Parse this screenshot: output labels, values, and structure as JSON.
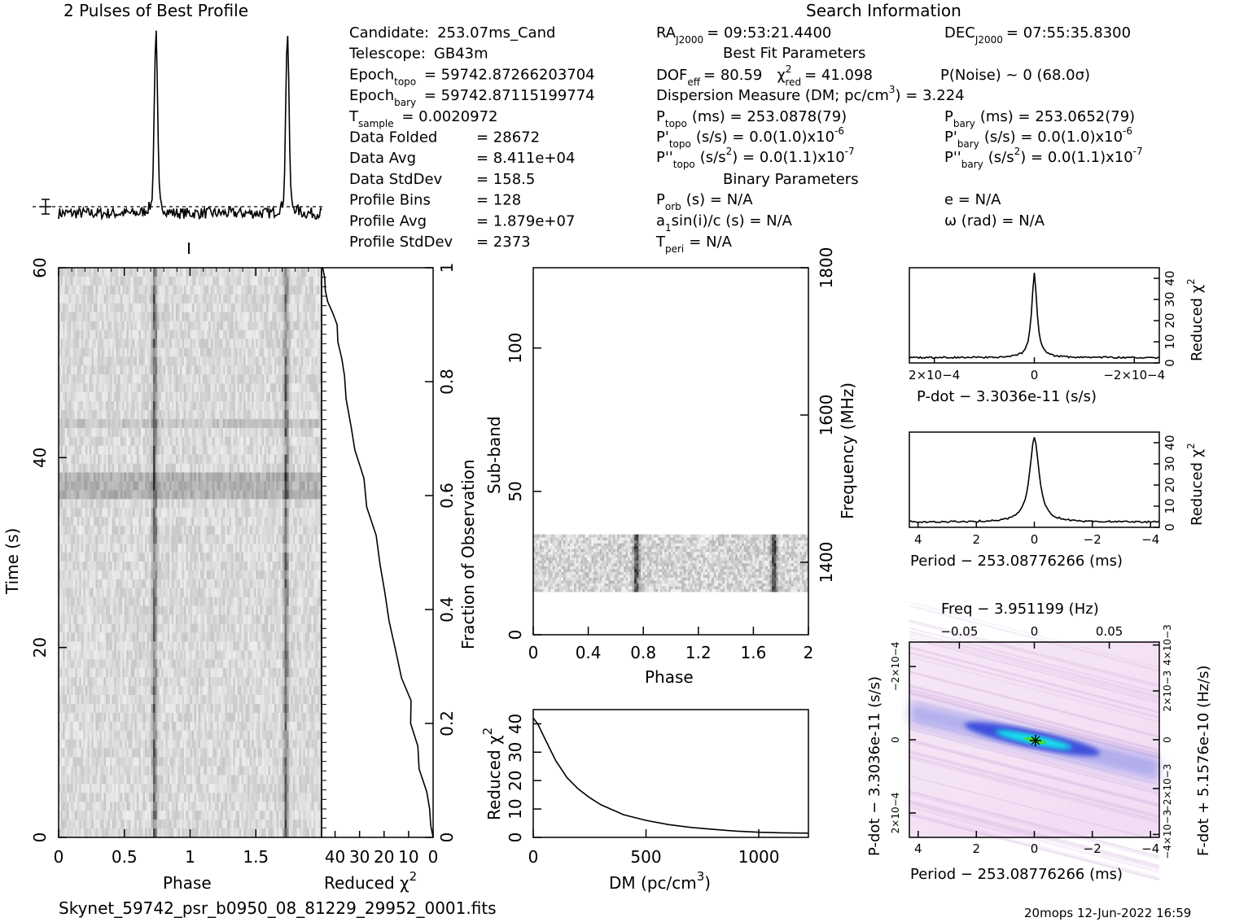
{
  "profile": {
    "title": "2 Pulses of Best Profile"
  },
  "header": {
    "search_title": "Search Information",
    "best_fit_title": "Best Fit Parameters",
    "binary_title": "Binary Parameters",
    "col1": [
      {
        "label": "Candidate:",
        "value": "253.07ms_Cand"
      },
      {
        "label": "Telescope:",
        "value": "GB43m"
      },
      {
        "label": "Epoch",
        "sub": "topo",
        "value": "= 59742.87266203704"
      },
      {
        "label": "Epoch",
        "sub": "bary",
        "value": "= 59742.87115199774"
      },
      {
        "label": "T",
        "sub": "sample",
        "value": "=   0.0020972"
      },
      {
        "label": "Data Folded",
        "value": "=   28672"
      },
      {
        "label": "Data Avg",
        "value": "=   8.411e+04"
      },
      {
        "label": "Data StdDev",
        "value": "=   158.5"
      },
      {
        "label": "Profile Bins",
        "value": "=   128"
      },
      {
        "label": "Profile Avg",
        "value": "=   1.879e+07"
      },
      {
        "label": "Profile StdDev",
        "value": "=   2373"
      }
    ],
    "ra": "RA",
    "ra_sub": "J2000",
    "ra_value": "= 09:53:21.4400",
    "dec": "DEC",
    "dec_sub": "J2000",
    "dec_value": "= 07:55:35.8300",
    "dof_label": "DOF",
    "dof_sub": "eff",
    "dof_value": "= 80.59",
    "chi_label": "χ",
    "chi_sup": "2",
    "chi_sub": "red",
    "chi_value": "= 41.098",
    "pnoise": "P(Noise) ~ 0    (68.0σ)",
    "dm_line": "Dispersion Measure (DM; pc/cm",
    "dm_sup": "3",
    "dm_value": ") = 3.224",
    "p_topo_label": "P",
    "p_topo_sub": "topo",
    "p_topo_value": "(ms) =  253.0878(79)",
    "p_bary_label": "P",
    "p_bary_sub": "bary",
    "p_bary_value": "(ms) =  253.0652(79)",
    "pd_topo_label": "P'",
    "pd_topo_sub": "topo",
    "pd_topo_value": "(s/s) = 0.0(1.0)x10",
    "pd_topo_exp": "-6",
    "pd_bary_label": "P'",
    "pd_bary_sub": "bary",
    "pd_bary_value": "(s/s) = 0.0(1.0)x10",
    "pd_bary_exp": "-6",
    "pdd_topo_label": "P''",
    "pdd_topo_sub": "topo",
    "pdd_topo_value_a": "(s/s",
    "pdd_topo_value_sup": "2",
    "pdd_topo_value_b": ") = 0.0(1.1)x10",
    "pdd_topo_exp": "-7",
    "pdd_bary_label": "P''",
    "pdd_bary_sub": "bary",
    "pdd_bary_value_a": "(s/s",
    "pdd_bary_value_sup": "2",
    "pdd_bary_value_b": ") = 0.0(1.1)x10",
    "pdd_bary_exp": "-7",
    "porb_label": "P",
    "porb_sub": "orb",
    "porb_value": "(s) = N/A",
    "a1_label": "a",
    "a1_sub": "1",
    "a1_value": "sin(i)/c (s) = N/A",
    "tperi_label": "T",
    "tperi_sub": "peri",
    "tperi_value": "= N/A",
    "e_value": "e = N/A",
    "omega_value": "ω (rad) = N/A"
  },
  "footer": {
    "filename": "Skynet_59742_psr_b0950_08_81229_29952_0001.fits",
    "stamp": "20mops 12-Jun-2022 16:59"
  },
  "chart_data": [
    {
      "id": "profile",
      "type": "line",
      "title": "2 Pulses of Best Profile",
      "x": "phase 0-2 (two repeats)",
      "peaks_phase": [
        0.74,
        1.74
      ],
      "xlim": [
        0,
        2
      ]
    },
    {
      "id": "time-phase",
      "type": "heatmap",
      "xlabel": "Phase",
      "ylabel": "Time (s)",
      "xlim": [
        0,
        2
      ],
      "ylim": [
        0,
        60
      ],
      "xticks": [
        "0",
        "0.5",
        "1",
        "1.5"
      ],
      "yticks": [
        "0",
        "20",
        "40",
        "60"
      ],
      "pulse_phase": [
        0.73,
        1.73
      ]
    },
    {
      "id": "chi-vs-time",
      "type": "line",
      "xlabel": "Reduced χ2",
      "ylabel": "Fraction of Observation",
      "xticks": [
        "40",
        "30",
        "20",
        "10",
        "0"
      ],
      "yticks": [
        "0",
        "0.2",
        "0.4",
        "0.6",
        "0.8",
        "1"
      ],
      "x": [
        0,
        1,
        2,
        3,
        5,
        7,
        9,
        10,
        12,
        15,
        18,
        20,
        22,
        24,
        27,
        29,
        31,
        33,
        35,
        37,
        38,
        39,
        40,
        41,
        42,
        43,
        44,
        45
      ],
      "y": [
        0,
        0.02,
        0.05,
        0.08,
        0.12,
        0.16,
        0.2,
        0.24,
        0.28,
        0.33,
        0.38,
        0.43,
        0.48,
        0.53,
        0.58,
        0.63,
        0.68,
        0.72,
        0.77,
        0.81,
        0.84,
        0.87,
        0.9,
        0.92,
        0.94,
        0.96,
        0.98,
        1.0
      ]
    },
    {
      "id": "subband-phase",
      "type": "heatmap",
      "xlabel": "Phase",
      "ylabel": "Sub-band",
      "y2label": "Frequency (MHz)",
      "xlim": [
        0,
        2
      ],
      "ylim": [
        0,
        128
      ],
      "xticks": [
        "0",
        "0.4",
        "0.8",
        "1.2",
        "1.6",
        "2"
      ],
      "yticks": [
        "0",
        "50",
        "100"
      ],
      "y2ticks": [
        "1400",
        "1600",
        "1800"
      ],
      "data_band": [
        15,
        35
      ],
      "pulse_phase": [
        0.75,
        1.75
      ]
    },
    {
      "id": "dm-chi",
      "type": "line",
      "xlabel": "DM (pc/cm3)",
      "ylabel": "Reduced χ2",
      "xlim": [
        0,
        1220
      ],
      "ylim": [
        0,
        45
      ],
      "xticks": [
        "0",
        "500",
        "1000"
      ],
      "yticks": [
        "0",
        "10",
        "20",
        "30",
        "40"
      ],
      "x": [
        0,
        20,
        50,
        100,
        150,
        200,
        250,
        300,
        400,
        500,
        600,
        700,
        800,
        900,
        1000,
        1100,
        1220
      ],
      "y": [
        42,
        40,
        35,
        27,
        21,
        17,
        14,
        11.5,
        8,
        6,
        4.5,
        3.5,
        2.8,
        2.2,
        1.8,
        1.6,
        1.5
      ]
    },
    {
      "id": "pdot-chi",
      "type": "line",
      "xlabel": "P-dot − 3.3036e-11 (s/s)",
      "ylabel": "Reduced χ2",
      "xticks": [
        "2×10−4",
        "0",
        "−2×10−4"
      ],
      "yticks": [
        "0",
        "10",
        "20",
        "30",
        "40"
      ],
      "xlim": [
        0.00027,
        -0.00027
      ],
      "ylim": [
        0,
        45
      ],
      "peak": {
        "x": 0,
        "y": 41
      }
    },
    {
      "id": "period-chi",
      "type": "line",
      "xlabel": "Period − 253.08776266 (ms)",
      "ylabel": "Reduced χ2",
      "xticks": [
        "4",
        "2",
        "0",
        "−2",
        "−4"
      ],
      "yticks": [
        "0",
        "10",
        "20",
        "30",
        "40"
      ],
      "xlim": [
        4.3,
        -4.3
      ],
      "ylim": [
        0,
        45
      ],
      "peak": {
        "x": 0,
        "y": 41
      }
    },
    {
      "id": "p-pdot-plane",
      "type": "heatmap",
      "xlabel": "Period − 253.08776266 (ms)",
      "ylabel": "P-dot − 3.3036e-11 (s/s)",
      "x2label": "Freq − 3.951199 (Hz)",
      "y2label": "F-dot + 5.1576e-10 (Hz/s)",
      "xticks": [
        "4",
        "2",
        "0",
        "−2",
        "−4"
      ],
      "yticks": [
        "2×10−4",
        "0",
        "−2×10−4"
      ],
      "x2ticks": [
        "−0.05",
        "0",
        "0.05"
      ],
      "y2ticks": [
        "−4×10−3",
        "−2×10−3",
        "0",
        "2×10−3",
        "4×10−3"
      ]
    }
  ]
}
